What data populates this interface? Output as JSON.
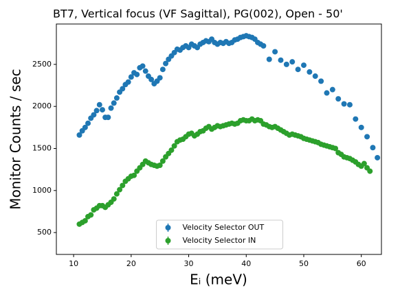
{
  "chart_data": {
    "type": "scatter",
    "title": "BT7, Vertical focus (VF Sagittal), PG(002), Open - 50'",
    "x_label": "Eᵢ (meV)",
    "y_label": "Monitor Counts / sec",
    "xlim": [
      7,
      63.5
    ],
    "ylim": [
      240,
      2980
    ],
    "xticks": [
      10,
      20,
      30,
      40,
      50,
      60
    ],
    "yticks": [
      500,
      1000,
      1500,
      2000,
      2500
    ],
    "grid": false,
    "legend": "lower center",
    "series": [
      {
        "name": "Velocity Selector OUT",
        "color": "#1f77b4",
        "x": [
          11.0,
          11.5,
          12.0,
          12.5,
          13.0,
          13.5,
          14.0,
          14.5,
          15.0,
          15.5,
          16.0,
          16.5,
          17.0,
          17.5,
          18.0,
          18.5,
          19.0,
          19.5,
          20.0,
          20.5,
          21.0,
          21.5,
          22.0,
          22.5,
          23.0,
          23.5,
          24.0,
          24.5,
          25.0,
          25.5,
          26.0,
          26.5,
          27.0,
          27.5,
          28.0,
          28.5,
          29.0,
          29.5,
          30.0,
          30.5,
          31.0,
          31.5,
          32.0,
          32.5,
          33.0,
          33.5,
          34.0,
          34.5,
          35.0,
          35.5,
          36.0,
          36.5,
          37.0,
          37.5,
          38.0,
          38.5,
          39.0,
          39.5,
          40.0,
          40.5,
          41.0,
          41.5,
          42.0,
          42.5,
          43.0,
          44.0,
          45.0,
          46.0,
          47.0,
          48.0,
          49.0,
          50.0,
          51.0,
          52.0,
          53.0,
          54.0,
          55.0,
          56.0,
          57.0,
          58.0,
          59.0,
          60.0,
          61.0,
          62.0,
          62.8
        ],
        "values": [
          1660,
          1710,
          1750,
          1800,
          1860,
          1900,
          1950,
          2020,
          1960,
          1870,
          1870,
          1980,
          2040,
          2100,
          2170,
          2210,
          2260,
          2290,
          2350,
          2400,
          2380,
          2460,
          2480,
          2420,
          2360,
          2320,
          2270,
          2300,
          2340,
          2440,
          2510,
          2560,
          2600,
          2640,
          2680,
          2670,
          2700,
          2720,
          2700,
          2740,
          2720,
          2700,
          2740,
          2760,
          2780,
          2770,
          2800,
          2760,
          2740,
          2760,
          2750,
          2770,
          2750,
          2760,
          2790,
          2800,
          2820,
          2830,
          2840,
          2830,
          2820,
          2800,
          2760,
          2740,
          2720,
          2560,
          2650,
          2550,
          2500,
          2530,
          2440,
          2490,
          2410,
          2360,
          2300,
          2160,
          2200,
          2090,
          2030,
          2020,
          1850,
          1750,
          1640,
          1510,
          1390
        ]
      },
      {
        "name": "Velocity Selector IN",
        "color": "#2ca02c",
        "x": [
          11.0,
          11.5,
          12.0,
          12.5,
          13.0,
          13.5,
          14.0,
          14.5,
          15.0,
          15.5,
          16.0,
          16.5,
          17.0,
          17.5,
          18.0,
          18.5,
          19.0,
          19.5,
          20.0,
          20.5,
          21.0,
          21.5,
          22.0,
          22.5,
          23.0,
          23.5,
          24.0,
          24.5,
          25.0,
          25.5,
          26.0,
          26.5,
          27.0,
          27.5,
          28.0,
          28.5,
          29.0,
          29.5,
          30.0,
          30.5,
          31.0,
          31.5,
          32.0,
          32.5,
          33.0,
          33.5,
          34.0,
          34.5,
          35.0,
          35.5,
          36.0,
          36.5,
          37.0,
          37.5,
          38.0,
          38.5,
          39.0,
          39.5,
          40.0,
          40.5,
          41.0,
          41.5,
          42.0,
          42.5,
          43.0,
          43.5,
          44.0,
          44.5,
          45.0,
          45.5,
          46.0,
          46.5,
          47.0,
          47.5,
          48.0,
          48.5,
          49.0,
          49.5,
          50.0,
          50.5,
          51.0,
          51.5,
          52.0,
          52.5,
          53.0,
          53.5,
          54.0,
          54.5,
          55.0,
          55.5,
          56.0,
          56.5,
          57.0,
          57.5,
          58.0,
          58.5,
          59.0,
          59.5,
          60.0,
          60.5,
          61.0,
          61.5
        ],
        "values": [
          600,
          620,
          640,
          690,
          710,
          770,
          790,
          820,
          820,
          800,
          830,
          860,
          900,
          960,
          1010,
          1060,
          1110,
          1140,
          1170,
          1180,
          1230,
          1270,
          1310,
          1350,
          1330,
          1310,
          1300,
          1290,
          1300,
          1350,
          1400,
          1440,
          1480,
          1530,
          1580,
          1600,
          1610,
          1640,
          1670,
          1680,
          1650,
          1670,
          1700,
          1710,
          1740,
          1760,
          1730,
          1750,
          1770,
          1760,
          1770,
          1780,
          1790,
          1800,
          1790,
          1800,
          1830,
          1840,
          1830,
          1830,
          1850,
          1830,
          1840,
          1830,
          1790,
          1780,
          1760,
          1750,
          1760,
          1740,
          1720,
          1700,
          1680,
          1660,
          1670,
          1660,
          1650,
          1640,
          1620,
          1610,
          1600,
          1590,
          1580,
          1570,
          1550,
          1540,
          1530,
          1520,
          1510,
          1500,
          1450,
          1430,
          1400,
          1390,
          1380,
          1360,
          1340,
          1310,
          1290,
          1320,
          1270,
          1230
        ]
      }
    ]
  }
}
